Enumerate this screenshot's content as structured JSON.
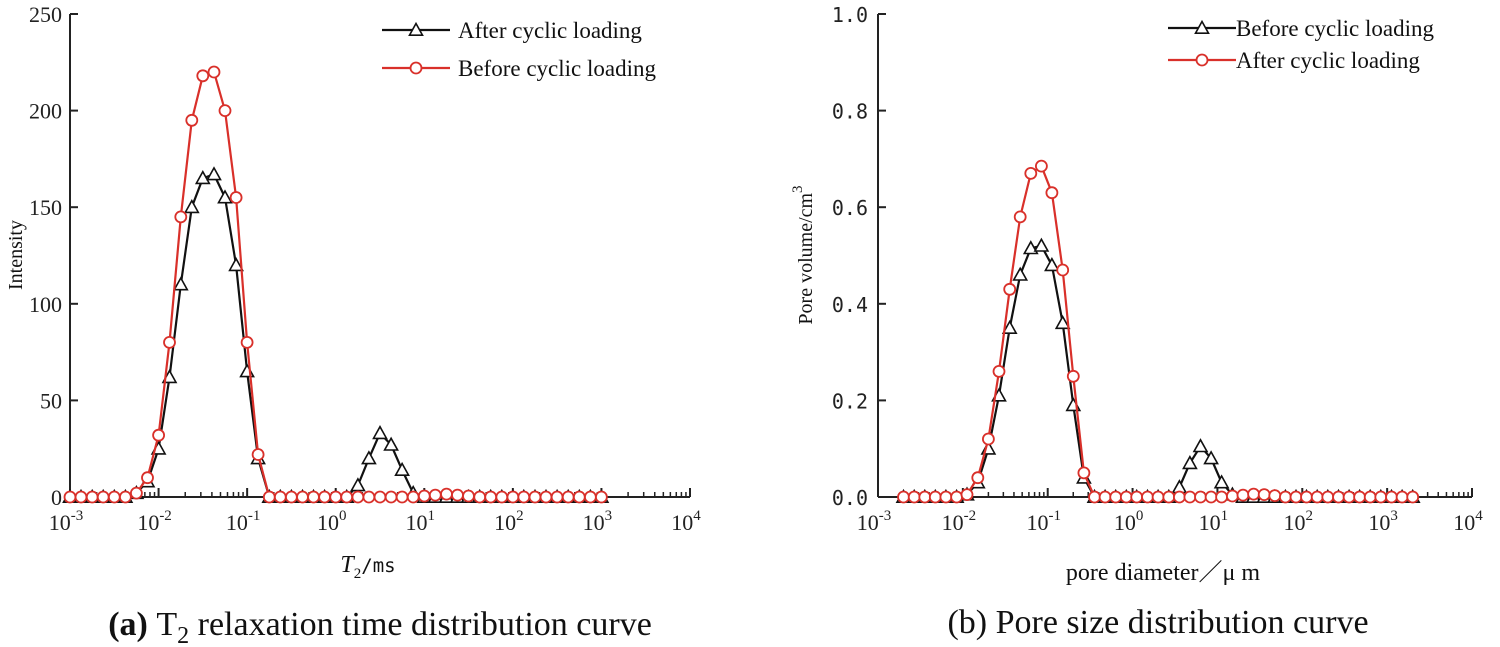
{
  "chart_data": [
    {
      "type": "line",
      "panel": "a",
      "caption": {
        "bold": "(a)",
        "pre": "T",
        "sub": "2",
        "post": " relaxation time distribution curve"
      },
      "ylabel": "Intensity",
      "xlabel": {
        "italic": "T",
        "sub": "2",
        "rest": "/ms"
      },
      "xscale": "log",
      "xlim": [
        0.001,
        10000
      ],
      "ylim": [
        0,
        250
      ],
      "yticks": [
        "0",
        "50",
        "100",
        "150",
        "200",
        "250"
      ],
      "xtick_exponents": [
        "-3",
        "-2",
        "-1",
        "0",
        "1",
        "2",
        "3",
        "4"
      ],
      "legend_position": "top-right",
      "series": [
        {
          "name": "After cyclic loading",
          "color": "#111111",
          "marker": "triangle",
          "x": [
            0.001,
            0.00133,
            0.00178,
            0.00237,
            0.00316,
            0.00422,
            0.00562,
            0.0075,
            0.01,
            0.0133,
            0.0178,
            0.0237,
            0.0316,
            0.0422,
            0.0562,
            0.075,
            0.1,
            0.133,
            0.178,
            0.237,
            0.316,
            0.422,
            0.562,
            0.75,
            1,
            1.33,
            1.78,
            2.37,
            3.16,
            4.22,
            5.62,
            7.5,
            10,
            13.3,
            17.8,
            23.7,
            31.6,
            42.2,
            56.2,
            75,
            100,
            133,
            178,
            237,
            316,
            422,
            562,
            750,
            1000
          ],
          "y": [
            0,
            0,
            0,
            0,
            0,
            0,
            2,
            8,
            25,
            62,
            110,
            150,
            165,
            167,
            155,
            120,
            65,
            20,
            0,
            0,
            0,
            0,
            0,
            0,
            0,
            0,
            6,
            20,
            33,
            27,
            14,
            2,
            0,
            0,
            0,
            0,
            0,
            0,
            0,
            0,
            0,
            0,
            0,
            0,
            0,
            0,
            0,
            0,
            0
          ]
        },
        {
          "name": "Before cyclic loading",
          "color": "#d9302a",
          "marker": "circle",
          "x": [
            0.001,
            0.00133,
            0.00178,
            0.00237,
            0.00316,
            0.00422,
            0.00562,
            0.0075,
            0.01,
            0.0133,
            0.0178,
            0.0237,
            0.0316,
            0.0422,
            0.0562,
            0.075,
            0.1,
            0.133,
            0.178,
            0.237,
            0.316,
            0.422,
            0.562,
            0.75,
            1,
            1.33,
            1.78,
            2.37,
            3.16,
            4.22,
            5.62,
            7.5,
            10,
            13.3,
            17.8,
            23.7,
            31.6,
            42.2,
            56.2,
            75,
            100,
            133,
            178,
            237,
            316,
            422,
            562,
            750,
            1000
          ],
          "y": [
            0,
            0,
            0,
            0,
            0,
            0,
            2,
            10,
            32,
            80,
            145,
            195,
            218,
            220,
            200,
            155,
            80,
            22,
            0,
            0,
            0,
            0,
            0,
            0,
            0,
            0,
            0,
            0,
            0,
            0,
            0,
            0,
            0.5,
            1,
            1.5,
            1,
            0.5,
            0,
            0,
            0,
            0,
            0,
            0,
            0,
            0,
            0,
            0,
            0,
            0
          ]
        }
      ]
    },
    {
      "type": "line",
      "panel": "b",
      "caption": {
        "bold": "",
        "pre": "(b) Pore size distribution curve",
        "sub": "",
        "post": ""
      },
      "ylabel": "Pore volume/cm",
      "ylabel_sup": "3",
      "xlabel": {
        "italic": "",
        "sub": "",
        "rest": "pore diameter／μ m"
      },
      "xscale": "log",
      "xlim": [
        0.001,
        10000
      ],
      "ylim": [
        0,
        1.0
      ],
      "yticks": [
        "0.0",
        "0.2",
        "0.4",
        "0.6",
        "0.8",
        "1.0"
      ],
      "xtick_exponents": [
        "-3",
        "-2",
        "-1",
        "0",
        "1",
        "2",
        "3",
        "4"
      ],
      "legend_position": "top-right",
      "series": [
        {
          "name": "Before cyclic loading",
          "color": "#111111",
          "marker": "triangle",
          "x": [
            0.002,
            0.00267,
            0.00356,
            0.00474,
            0.00632,
            0.00843,
            0.0112,
            0.015,
            0.02,
            0.0267,
            0.0356,
            0.0474,
            0.0632,
            0.0843,
            0.112,
            0.15,
            0.2,
            0.267,
            0.356,
            0.474,
            0.632,
            0.843,
            1.12,
            1.5,
            2,
            2.67,
            3.56,
            4.74,
            6.32,
            8.43,
            11.2,
            15,
            20,
            26.7,
            35.6,
            47.4,
            63.2,
            84.3,
            112,
            150,
            200,
            267,
            356,
            474,
            632,
            843,
            1124,
            1500,
            2000
          ],
          "y": [
            0,
            0,
            0,
            0,
            0,
            0,
            0.005,
            0.03,
            0.1,
            0.21,
            0.35,
            0.46,
            0.515,
            0.52,
            0.48,
            0.36,
            0.19,
            0.04,
            0,
            0,
            0,
            0,
            0,
            0,
            0,
            0,
            0.02,
            0.07,
            0.105,
            0.08,
            0.03,
            0.005,
            0,
            0,
            0,
            0,
            0,
            0,
            0,
            0,
            0,
            0,
            0,
            0,
            0,
            0,
            0,
            0,
            0
          ]
        },
        {
          "name": "After cyclic loading",
          "color": "#d9302a",
          "marker": "circle",
          "x": [
            0.002,
            0.00267,
            0.00356,
            0.00474,
            0.00632,
            0.00843,
            0.0112,
            0.015,
            0.02,
            0.0267,
            0.0356,
            0.0474,
            0.0632,
            0.0843,
            0.112,
            0.15,
            0.2,
            0.267,
            0.356,
            0.474,
            0.632,
            0.843,
            1.12,
            1.5,
            2,
            2.67,
            3.56,
            4.74,
            6.32,
            8.43,
            11.2,
            15,
            20,
            26.7,
            35.6,
            47.4,
            63.2,
            84.3,
            112,
            150,
            200,
            267,
            356,
            474,
            632,
            843,
            1124,
            1500,
            2000
          ],
          "y": [
            0,
            0,
            0,
            0,
            0,
            0,
            0.005,
            0.04,
            0.12,
            0.26,
            0.43,
            0.58,
            0.67,
            0.685,
            0.63,
            0.47,
            0.25,
            0.05,
            0,
            0,
            0,
            0,
            0,
            0,
            0,
            0,
            0,
            0,
            0,
            0,
            0,
            0.002,
            0.004,
            0.006,
            0.005,
            0.003,
            0,
            0,
            0,
            0,
            0,
            0,
            0,
            0,
            0,
            0,
            0,
            0,
            0
          ]
        }
      ]
    }
  ]
}
